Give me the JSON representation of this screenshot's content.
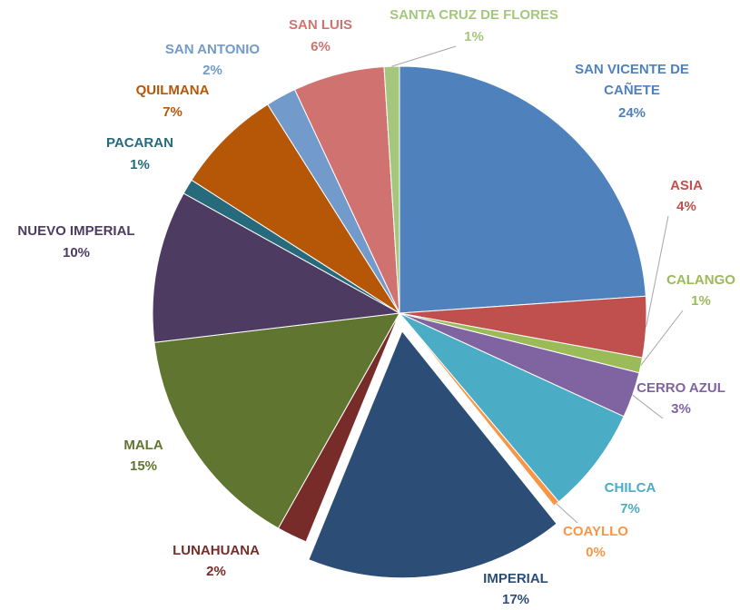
{
  "chart_data": {
    "type": "pie",
    "categories": [
      "SAN VICENTE DE CAÑETE",
      "ASIA",
      "CALANGO",
      "CERRO AZUL",
      "CHILCA",
      "COAYLLO",
      "IMPERIAL",
      "LUNAHUANA",
      "MALA",
      "NUEVO IMPERIAL",
      "PACARAN",
      "QUILMANA",
      "SAN ANTONIO",
      "SAN LUIS",
      "SANTA CRUZ DE FLORES"
    ],
    "values": [
      24,
      4,
      1,
      3,
      7,
      0.4,
      17,
      2,
      15,
      10,
      1,
      7,
      2,
      6,
      1
    ],
    "value_labels": [
      "24%",
      "4%",
      "1%",
      "3%",
      "7%",
      "0%",
      "17%",
      "2%",
      "15%",
      "10%",
      "1%",
      "7%",
      "2%",
      "6%",
      "1%"
    ],
    "colors": [
      "#4f81bd",
      "#c0504d",
      "#9bbb59",
      "#8064a2",
      "#4bacc6",
      "#f79646",
      "#2c4d75",
      "#772c2a",
      "#5f7530",
      "#4d3b62",
      "#276a7c",
      "#b65708",
      "#729aca",
      "#d07370",
      "#a5c77d"
    ],
    "exploded": [
      6
    ]
  }
}
